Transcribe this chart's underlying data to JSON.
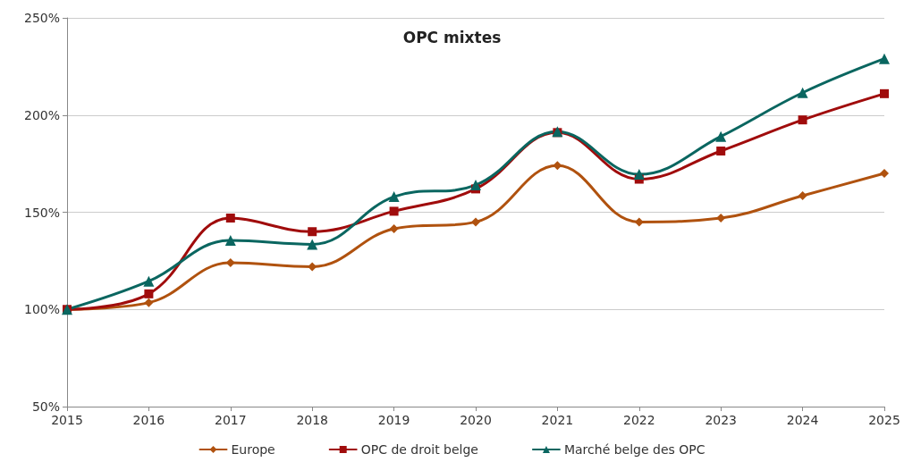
{
  "chart_data": {
    "type": "line",
    "title": "OPC mixtes",
    "categories": [
      "2015",
      "2016",
      "2017",
      "2018",
      "2019",
      "2020",
      "2021",
      "2022",
      "2023",
      "2024",
      "2025"
    ],
    "series": [
      {
        "name": "Europe",
        "color": "#b0520f",
        "marker": "diamond",
        "values": [
          100,
          103.5,
          124,
          122,
          141.5,
          145,
          174,
          145,
          147,
          158.5,
          170
        ]
      },
      {
        "name": "OPC de droit belge",
        "color": "#a00c0c",
        "marker": "square",
        "values": [
          100,
          108,
          147,
          140,
          150.5,
          162,
          191,
          167,
          181.5,
          197.5,
          211
        ]
      },
      {
        "name": "Marché belge des OPC",
        "color": "#0a6660",
        "marker": "triangle",
        "values": [
          100,
          114.5,
          135.5,
          133.5,
          158,
          164,
          191.5,
          169.5,
          189,
          211.5,
          229
        ]
      }
    ],
    "ylim": [
      50,
      250
    ],
    "yticks": [
      {
        "value": 50,
        "label": "50%"
      },
      {
        "value": 100,
        "label": "100%"
      },
      {
        "value": 150,
        "label": "150%"
      },
      {
        "value": 200,
        "label": "200%"
      },
      {
        "value": 250,
        "label": "250%"
      }
    ],
    "grid": "y",
    "legend": "bottom",
    "line_style": "solid"
  }
}
